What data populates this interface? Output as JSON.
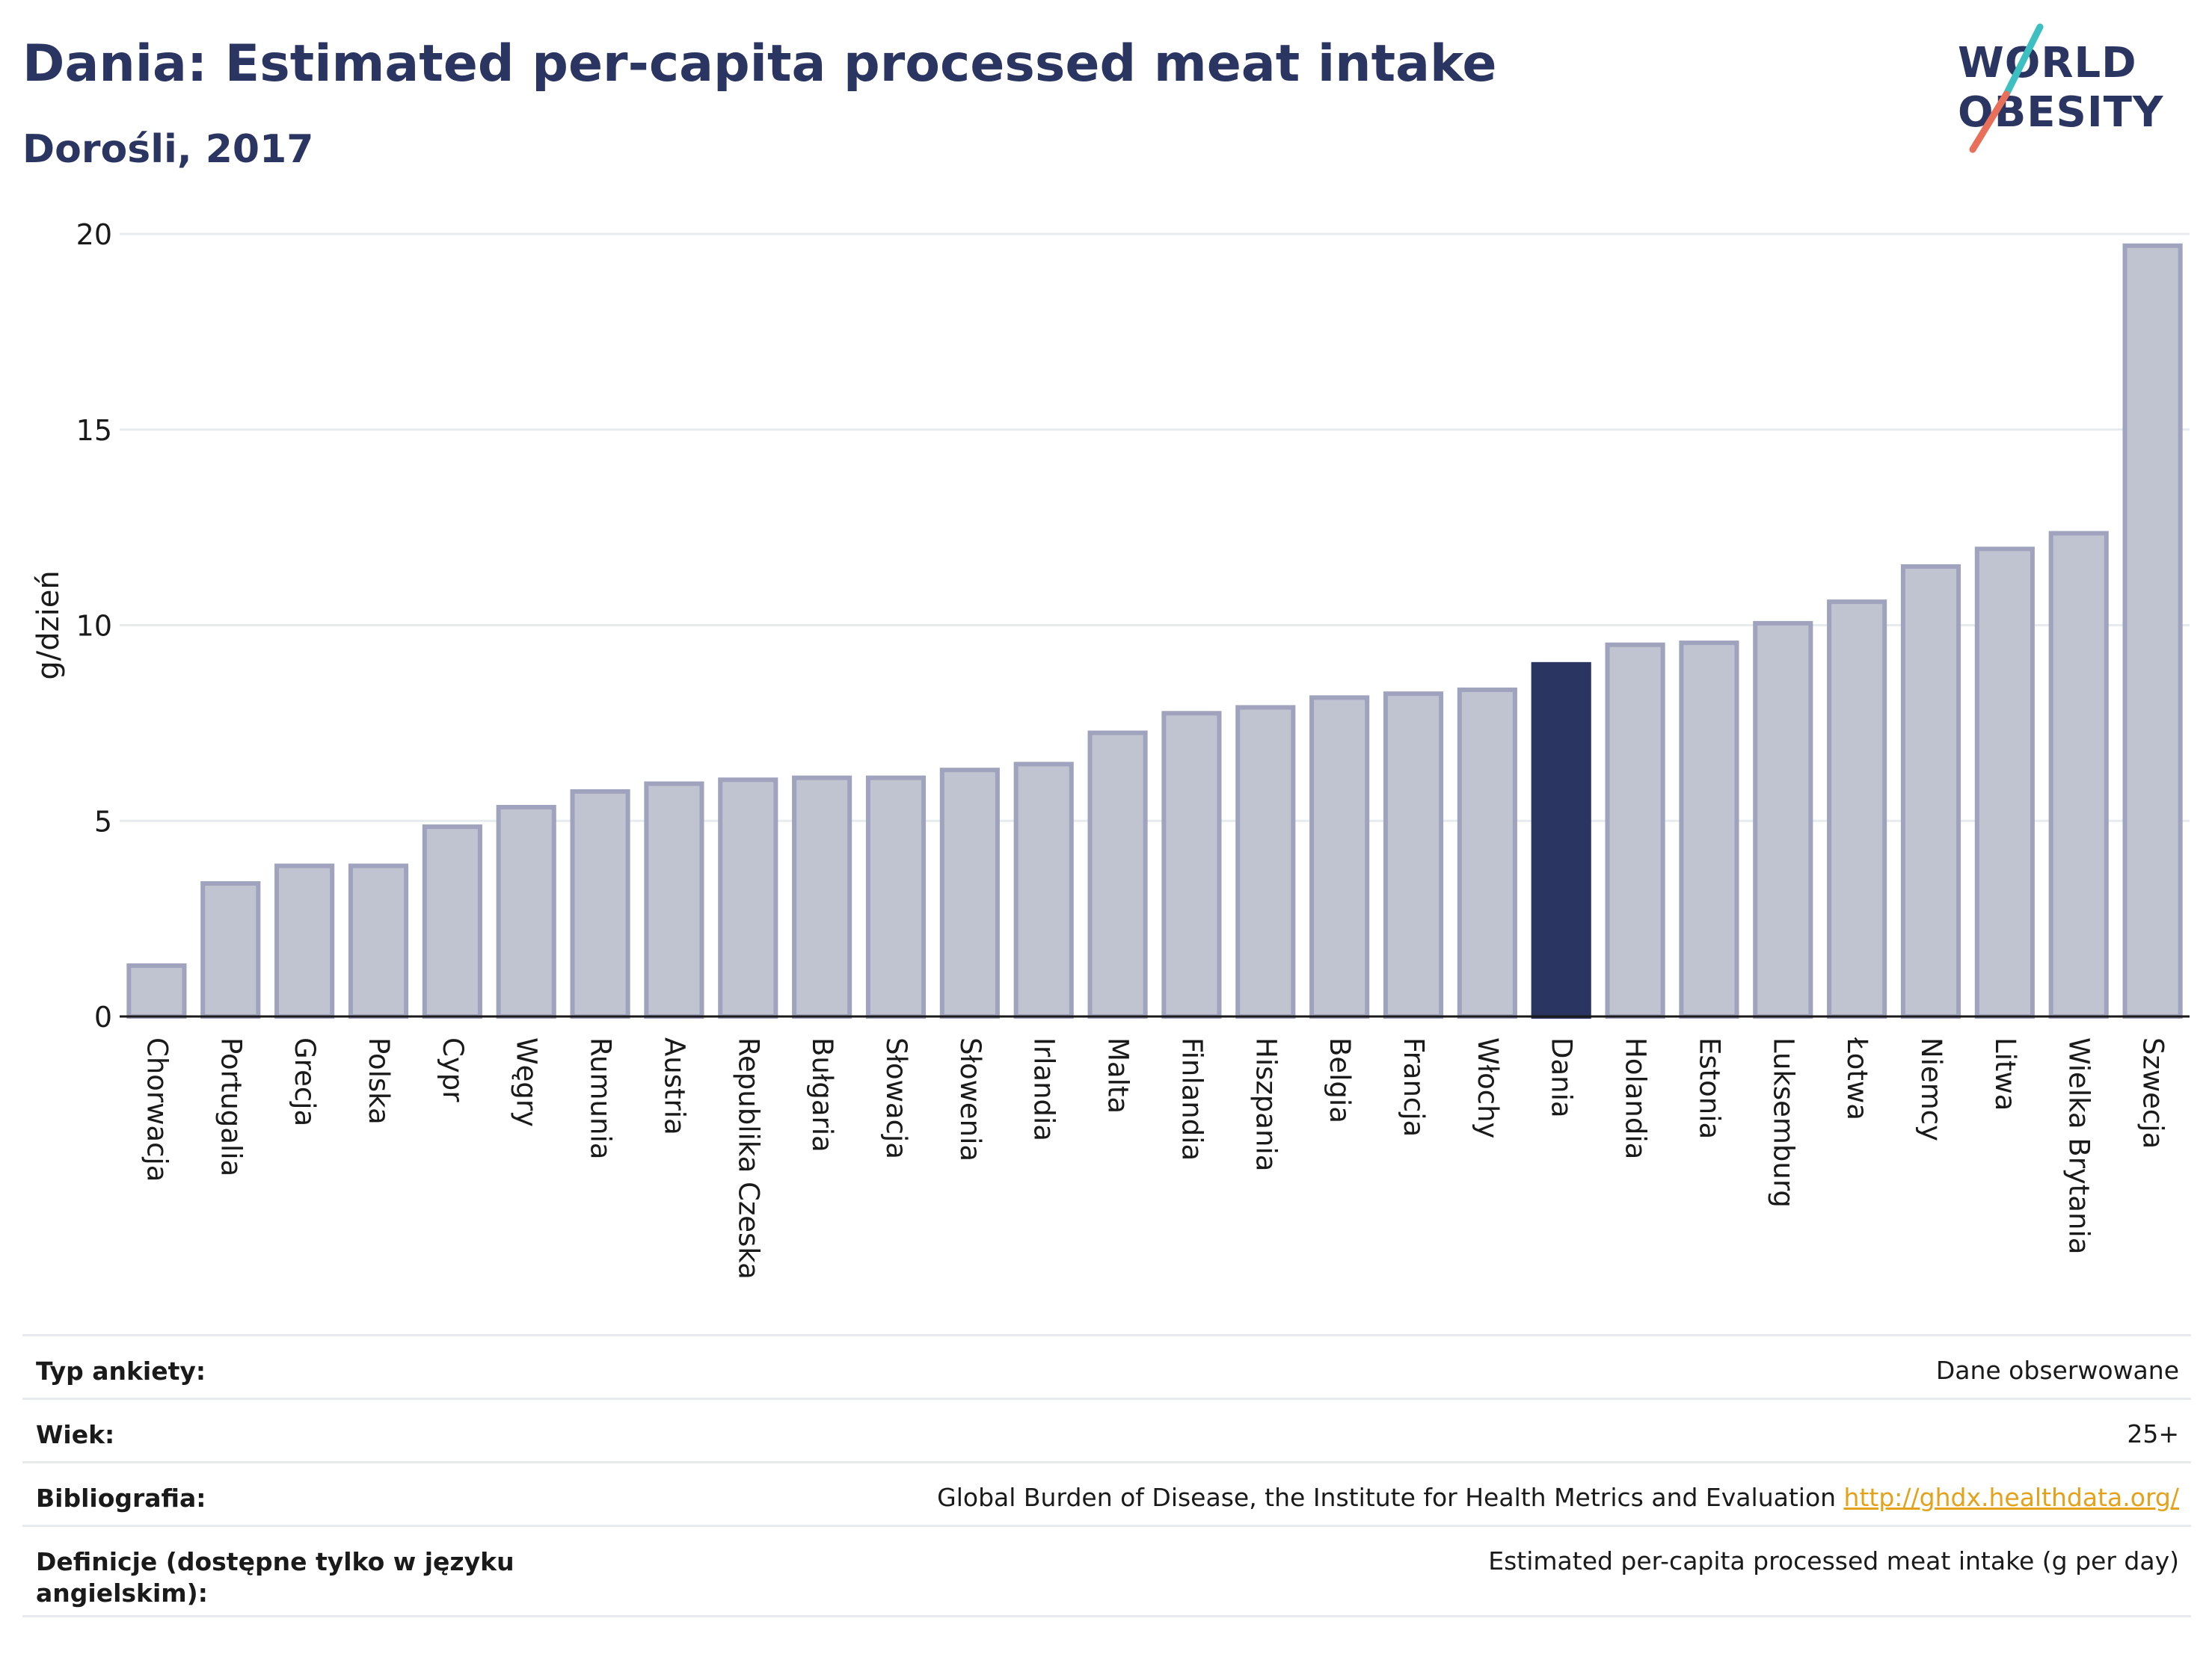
{
  "title": "Dania: Estimated per-capita processed meat intake",
  "subtitle": "Dorośli, 2017",
  "logo": {
    "line1": "WORLD",
    "line2": "OBESITY"
  },
  "colors": {
    "bar": "#c0c3d0",
    "bar_border": "#9fa3bd",
    "highlight": "#2b3561",
    "title": "#2b3561",
    "link": "#e3a21a",
    "grid": "#e7ebee",
    "logo_slash_teal": "#3bbfc1",
    "logo_slash_red": "#e8705a"
  },
  "chart_data": {
    "type": "bar",
    "ylabel": "g/dzień",
    "ylim": [
      0,
      20
    ],
    "yticks": [
      0,
      5,
      10,
      15,
      20
    ],
    "highlight": "Dania",
    "categories": [
      "Chorwacja",
      "Portugalia",
      "Grecja",
      "Polska",
      "Cypr",
      "Węgry",
      "Rumunia",
      "Austria",
      "Republika Czeska",
      "Bułgaria",
      "Słowacja",
      "Słowenia",
      "Irlandia",
      "Malta",
      "Finlandia",
      "Hiszpania",
      "Belgia",
      "Francja",
      "Włochy",
      "Dania",
      "Holandia",
      "Estonia",
      "Luksemburg",
      "Łotwa",
      "Niemcy",
      "Litwa",
      "Wielka Brytania",
      "Szwecja"
    ],
    "values": [
      1.3,
      3.4,
      3.85,
      3.85,
      4.85,
      5.35,
      5.75,
      5.95,
      6.05,
      6.1,
      6.1,
      6.3,
      6.45,
      7.25,
      7.75,
      7.9,
      8.15,
      8.25,
      8.35,
      9.0,
      9.5,
      9.55,
      10.05,
      10.6,
      11.5,
      11.95,
      12.35,
      19.7
    ]
  },
  "meta": {
    "survey_label": "Typ ankiety:",
    "survey_value": "Dane obserwowane",
    "age_label": "Wiek:",
    "age_value": "25+",
    "bib_label": "Bibliografia:",
    "bib_value": "Global Burden of Disease, the Institute for Health Metrics and Evaluation",
    "bib_link": "http://ghdx.healthdata.org/",
    "def_label": "Definicje (dostępne tylko w języku angielskim):",
    "def_value": "Estimated per-capita processed meat intake (g per day)"
  }
}
